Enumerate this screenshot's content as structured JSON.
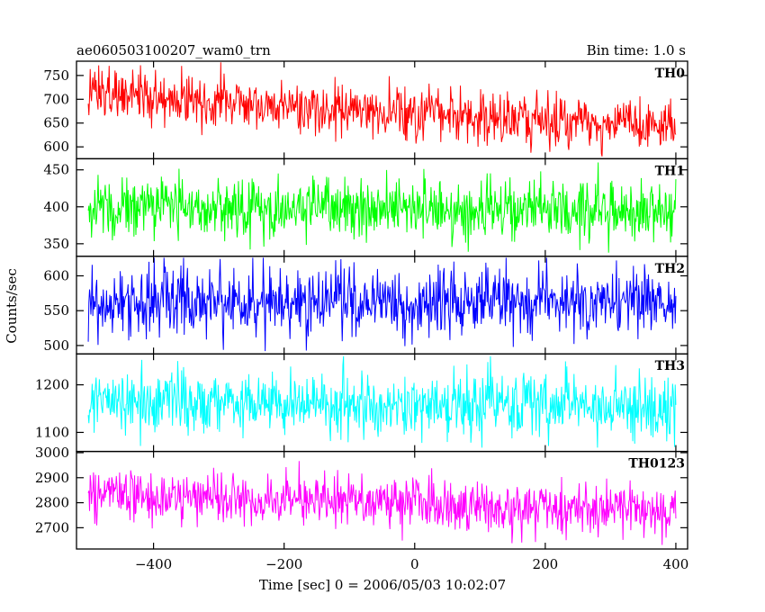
{
  "header": {
    "title": "ae060503100207_wam0_trn",
    "bin_time": "Bin time: 1.0 s"
  },
  "chart_data": {
    "type": "line",
    "xlabel": "Time [sec] 0 = 2006/05/03 10:02:07",
    "ylabel": "Counts/sec",
    "xlim": [
      -518,
      418
    ],
    "xticks": [
      -400,
      -200,
      0,
      200,
      400
    ],
    "x_start": -500,
    "x_end": 400,
    "bin_size": 1.0,
    "panels": [
      {
        "name": "TH0",
        "color": "#ff0000",
        "ylim": [
          575,
          780
        ],
        "yticks": [
          600,
          650,
          700,
          750
        ],
        "trend_start": 710,
        "trend_end": 640,
        "noise_sd": 27,
        "y_min_value": 580,
        "y_max_value": 778
      },
      {
        "name": "TH1",
        "color": "#00ff00",
        "ylim": [
          333,
          465
        ],
        "yticks": [
          350,
          400,
          450
        ],
        "trend_start": 400,
        "trend_end": 395,
        "noise_sd": 20,
        "y_min_value": 338,
        "y_max_value": 460
      },
      {
        "name": "TH2",
        "color": "#0000ff",
        "ylim": [
          488,
          628
        ],
        "yticks": [
          500,
          550,
          600
        ],
        "trend_start": 562,
        "trend_end": 560,
        "noise_sd": 24,
        "y_min_value": 492,
        "y_max_value": 626
      },
      {
        "name": "TH3",
        "color": "#00ffff",
        "ylim": [
          1060,
          1265
        ],
        "yticks": [
          1100,
          1200
        ],
        "trend_start": 1165,
        "trend_end": 1150,
        "noise_sd": 33,
        "y_min_value": 1068,
        "y_max_value": 1260
      },
      {
        "name": "TH0123",
        "color": "#ff00ff",
        "ylim": [
          2615,
          3005
        ],
        "yticks": [
          2700,
          2800,
          2900,
          3000
        ],
        "trend_start": 2835,
        "trend_end": 2765,
        "noise_sd": 52,
        "y_min_value": 2625,
        "y_max_value": 2990
      }
    ]
  }
}
